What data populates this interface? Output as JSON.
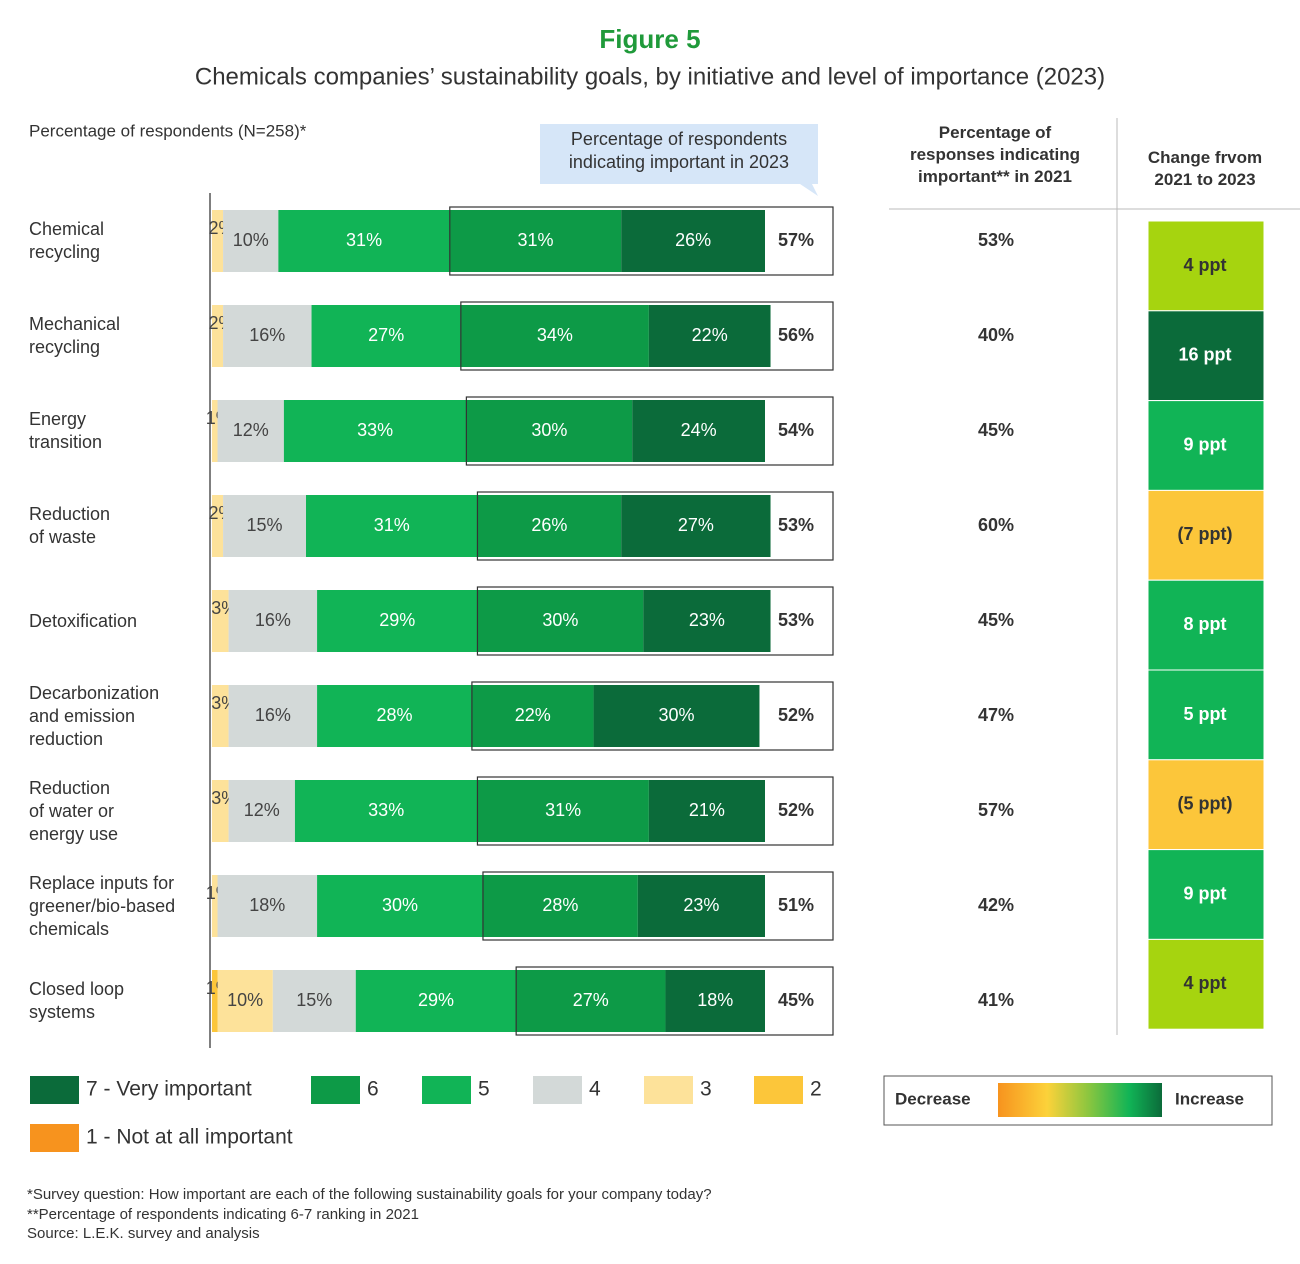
{
  "chart_data": {
    "type": "bar",
    "orientation": "horizontal",
    "stacked": true,
    "title": "Figure 5",
    "subtitle": "Chemicals companies’ sustainability goals, by initiative and level of importance (2023)",
    "axis_label": "Percentage of respondents (N=258)*",
    "categories": [
      "Chemical recycling",
      "Mechanical recycling",
      "Energy transition",
      "Reduction of waste",
      "Detoxification",
      "Decarbonization and emission reduction",
      "Reduction of water or energy use",
      "Replace inputs for greener/bio-based chemicals",
      "Closed loop systems"
    ],
    "series": [
      {
        "name": "1 - Not at all important",
        "color": "#f7931e",
        "values": [
          null,
          null,
          null,
          null,
          null,
          null,
          null,
          null,
          null
        ],
        "value_labels": [
          null,
          null,
          null,
          null,
          null,
          null,
          null,
          null,
          null
        ]
      },
      {
        "name": "2",
        "color": "#fcc63a",
        "values": [
          null,
          null,
          null,
          null,
          null,
          null,
          null,
          null,
          1
        ],
        "value_labels": [
          null,
          null,
          null,
          null,
          null,
          null,
          null,
          null,
          "1%"
        ]
      },
      {
        "name": "3",
        "color": "#fde29a",
        "values": [
          2,
          2,
          1,
          2,
          3,
          3,
          3,
          1,
          10
        ],
        "value_labels": [
          "2%",
          "2%",
          "1%",
          "2%",
          "3%",
          "3%",
          "3%",
          "1%",
          "10%"
        ]
      },
      {
        "name": "4",
        "color": "#d3d9d8",
        "values": [
          10,
          16,
          12,
          15,
          16,
          16,
          12,
          18,
          15
        ],
        "value_labels": [
          "10%",
          "16%",
          "12%",
          "15%",
          "16%",
          "16%",
          "12%",
          "18%",
          "15%"
        ]
      },
      {
        "name": "5",
        "color": "#11b456",
        "values": [
          31,
          27,
          33,
          31,
          29,
          28,
          33,
          30,
          29
        ],
        "value_labels": [
          "31%",
          "27%",
          "33%",
          "31%",
          "29%",
          "28%",
          "33%",
          "30%",
          "29%"
        ]
      },
      {
        "name": "6",
        "color": "#0d9a47",
        "values": [
          31,
          34,
          30,
          26,
          30,
          22,
          31,
          28,
          27
        ],
        "value_labels": [
          "31%",
          "34%",
          "30%",
          "26%",
          "30%",
          "22%",
          "31%",
          "28%",
          "27%"
        ]
      },
      {
        "name": "7 - Very important",
        "color": "#0b6b3a",
        "values": [
          26,
          22,
          24,
          27,
          23,
          30,
          21,
          23,
          18
        ],
        "value_labels": [
          "26%",
          "22%",
          "24%",
          "27%",
          "23%",
          "30%",
          "21%",
          "23%",
          "18%"
        ]
      }
    ],
    "important_2023": {
      "header": "Percentage of respondents indicating important in 2023",
      "values": [
        57,
        56,
        54,
        53,
        53,
        52,
        52,
        51,
        45
      ],
      "value_labels": [
        "57%",
        "56%",
        "54%",
        "53%",
        "53%",
        "52%",
        "52%",
        "51%",
        "45%"
      ]
    },
    "important_2021": {
      "header": "Percentage of responses indicating important** in 2021",
      "values": [
        53,
        40,
        45,
        60,
        45,
        47,
        57,
        42,
        41
      ],
      "value_labels": [
        "53%",
        "40%",
        "45%",
        "60%",
        "45%",
        "47%",
        "57%",
        "42%",
        "41%"
      ]
    },
    "change": {
      "header": "Change frvom 2021 to 2023",
      "values": [
        4,
        16,
        9,
        -7,
        8,
        5,
        -5,
        9,
        4
      ],
      "value_labels": [
        "4 ppt",
        "16 ppt",
        "9 ppt",
        "(7 ppt)",
        "8 ppt",
        "5 ppt",
        "(5 ppt)",
        "9 ppt",
        "4 ppt"
      ],
      "colors": [
        "#a6d40f",
        "#0b6b3a",
        "#11b456",
        "#fcc63a",
        "#11b456",
        "#11b456",
        "#fcc63a",
        "#11b456",
        "#a6d40f"
      ]
    },
    "change_legend": {
      "low": "Decrease",
      "high": "Increase"
    },
    "footnotes": [
      "*Survey question: How important are each of the following sustainability goals for your company today?",
      "**Percentage of respondents indicating 6-7 ranking in 2021",
      "Source: L.E.K. survey and analysis"
    ]
  }
}
